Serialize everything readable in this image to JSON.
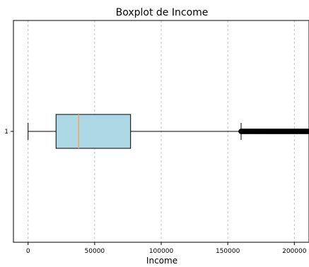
{
  "chart_data": {
    "type": "boxplot",
    "orientation": "horizontal",
    "title": "Boxplot de Income",
    "xlabel": "Income",
    "ylabel": "",
    "xlim": [
      -11000,
      211000
    ],
    "x_ticks": [
      0,
      50000,
      100000,
      150000,
      200000
    ],
    "x_tick_labels": [
      "0",
      "50000",
      "100000",
      "150000",
      "200000"
    ],
    "y_tick_labels": [
      "1"
    ],
    "grid": "x-dashed",
    "box": {
      "whisker_low": 0,
      "q1": 21000,
      "median": 38000,
      "q3": 77000,
      "whisker_high": 160000
    },
    "outliers_range": [
      160000,
      210000
    ],
    "colors": {
      "box_fill": "#add8e6",
      "median_line": "#f4a460",
      "outliers": "#000000"
    }
  }
}
